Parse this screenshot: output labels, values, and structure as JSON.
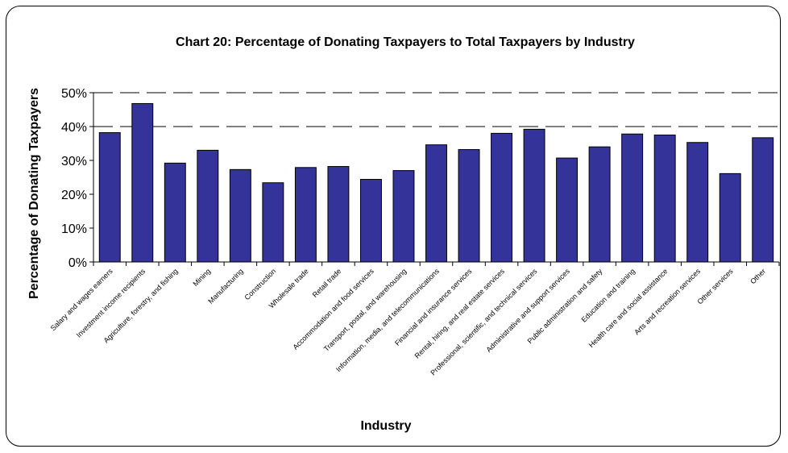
{
  "chart_data": {
    "type": "bar",
    "title": "Chart 20: Percentage of Donating Taxpayers to Total Taxpayers by Industry",
    "xlabel": "Industry",
    "ylabel": "Percentage of Donating Taxpayers",
    "ylim": [
      0,
      50
    ],
    "yticks": [
      "0%",
      "10%",
      "20%",
      "30%",
      "40%",
      "50%"
    ],
    "grid": "horizontal dashed at 40% and 50%",
    "legend": "none",
    "bar_color": "#333399",
    "categories": [
      "Salary and wages earners",
      "Investment income recipients",
      "Agriculture, forestry, and fishing",
      "Mining",
      "Manufacturing",
      "Construction",
      "Wholesale trade",
      "Retail trade",
      "Accommodation and food services",
      "Transport, postal, and warehousing",
      "Information, media, and telecommunications",
      "Financial and insurance services",
      "Rental, hiring, and real estate services",
      "Professional, scientific, and technical services",
      "Administrative and support services",
      "Public administration and safety",
      "Education and training",
      "Health care and social assistance",
      "Arts and recreation services",
      "Other services",
      "Other"
    ],
    "values": [
      38.2,
      46.8,
      29.2,
      33.0,
      27.3,
      23.4,
      27.9,
      28.2,
      24.4,
      27.0,
      34.6,
      33.2,
      38.0,
      39.2,
      30.7,
      34.0,
      37.8,
      37.5,
      35.3,
      26.1,
      36.7
    ]
  }
}
